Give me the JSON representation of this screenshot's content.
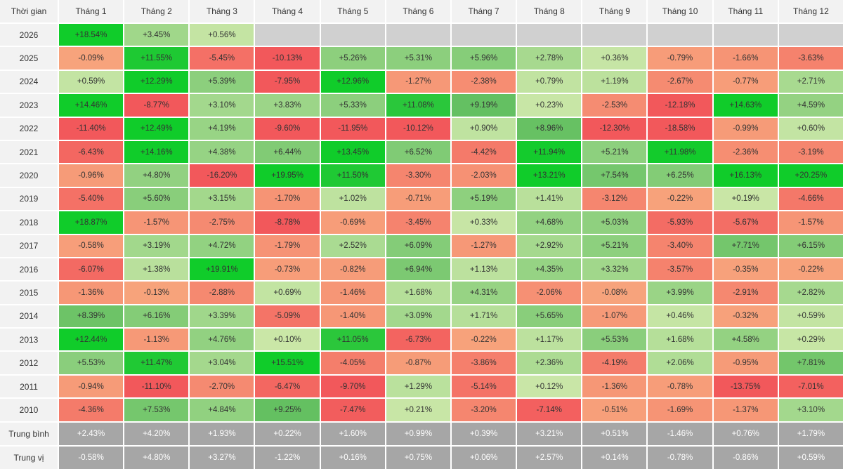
{
  "chart_data": {
    "type": "heatmap",
    "corner_label": "Thời gian",
    "columns": [
      "Tháng 1",
      "Tháng 2",
      "Tháng 3",
      "Tháng 4",
      "Tháng 5",
      "Tháng 6",
      "Tháng 7",
      "Tháng 8",
      "Tháng 9",
      "Tháng 10",
      "Tháng 11",
      "Tháng 12"
    ],
    "rows": [
      {
        "label": "2026",
        "values": [
          "+18.54%",
          "+3.45%",
          "+0.56%",
          "",
          "",
          "",
          "",
          "",
          "",
          "",
          "",
          ""
        ]
      },
      {
        "label": "2025",
        "values": [
          "-0.09%",
          "+11.55%",
          "-5.45%",
          "-10.13%",
          "+5.26%",
          "+5.31%",
          "+5.96%",
          "+2.78%",
          "+0.36%",
          "-0.79%",
          "-1.66%",
          "-3.63%"
        ]
      },
      {
        "label": "2024",
        "values": [
          "+0.59%",
          "+12.29%",
          "+5.39%",
          "-7.95%",
          "+12.96%",
          "-1.27%",
          "-2.38%",
          "+0.79%",
          "+1.19%",
          "-2.67%",
          "-0.77%",
          "+2.71%"
        ]
      },
      {
        "label": "2023",
        "values": [
          "+14.46%",
          "-8.77%",
          "+3.10%",
          "+3.83%",
          "+5.33%",
          "+11.08%",
          "+9.19%",
          "+0.23%",
          "-2.53%",
          "-12.18%",
          "+14.63%",
          "+4.59%"
        ]
      },
      {
        "label": "2022",
        "values": [
          "-11.40%",
          "+12.49%",
          "+4.19%",
          "-9.60%",
          "-11.95%",
          "-10.12%",
          "+0.90%",
          "+8.96%",
          "-12.30%",
          "-18.58%",
          "-0.99%",
          "+0.60%"
        ]
      },
      {
        "label": "2021",
        "values": [
          "-6.43%",
          "+14.16%",
          "+4.38%",
          "+6.44%",
          "+13.45%",
          "+6.52%",
          "-4.42%",
          "+11.94%",
          "+5.21%",
          "+11.98%",
          "-2.36%",
          "-3.19%"
        ]
      },
      {
        "label": "2020",
        "values": [
          "-0.96%",
          "+4.80%",
          "-16.20%",
          "+19.95%",
          "+11.50%",
          "-3.30%",
          "-2.03%",
          "+13.21%",
          "+7.54%",
          "+6.25%",
          "+16.13%",
          "+20.25%"
        ]
      },
      {
        "label": "2019",
        "values": [
          "-5.40%",
          "+5.60%",
          "+3.15%",
          "-1.70%",
          "+1.02%",
          "-0.71%",
          "+5.19%",
          "+1.41%",
          "-3.12%",
          "-0.22%",
          "+0.19%",
          "-4.66%"
        ]
      },
      {
        "label": "2018",
        "values": [
          "+18.87%",
          "-1.57%",
          "-2.75%",
          "-8.78%",
          "-0.69%",
          "-3.45%",
          "+0.33%",
          "+4.68%",
          "+5.03%",
          "-5.93%",
          "-5.67%",
          "-1.57%"
        ]
      },
      {
        "label": "2017",
        "values": [
          "-0.58%",
          "+3.19%",
          "+4.72%",
          "-1.79%",
          "+2.52%",
          "+6.09%",
          "-1.27%",
          "+2.92%",
          "+5.21%",
          "-3.40%",
          "+7.71%",
          "+6.15%"
        ]
      },
      {
        "label": "2016",
        "values": [
          "-6.07%",
          "+1.38%",
          "+19.91%",
          "-0.73%",
          "-0.82%",
          "+6.94%",
          "+1.13%",
          "+4.35%",
          "+3.32%",
          "-3.57%",
          "-0.35%",
          "-0.22%"
        ]
      },
      {
        "label": "2015",
        "values": [
          "-1.36%",
          "-0.13%",
          "-2.88%",
          "+0.69%",
          "-1.46%",
          "+1.68%",
          "+4.31%",
          "-2.06%",
          "-0.08%",
          "+3.99%",
          "-2.91%",
          "+2.82%"
        ]
      },
      {
        "label": "2014",
        "values": [
          "+8.39%",
          "+6.16%",
          "+3.39%",
          "-5.09%",
          "-1.40%",
          "+3.09%",
          "+1.71%",
          "+5.65%",
          "-1.07%",
          "+0.46%",
          "-0.32%",
          "+0.59%"
        ]
      },
      {
        "label": "2013",
        "values": [
          "+12.44%",
          "-1.13%",
          "+4.76%",
          "+0.10%",
          "+11.05%",
          "-6.73%",
          "-0.22%",
          "+1.17%",
          "+5.53%",
          "+1.68%",
          "+4.58%",
          "+0.29%"
        ]
      },
      {
        "label": "2012",
        "values": [
          "+5.53%",
          "+11.47%",
          "+3.04%",
          "+15.51%",
          "-4.05%",
          "-0.87%",
          "-3.86%",
          "+2.36%",
          "-4.19%",
          "+2.06%",
          "-0.95%",
          "+7.81%"
        ]
      },
      {
        "label": "2011",
        "values": [
          "-0.94%",
          "-11.10%",
          "-2.70%",
          "-6.47%",
          "-9.70%",
          "+1.29%",
          "-5.14%",
          "+0.12%",
          "-1.36%",
          "-0.78%",
          "-13.75%",
          "-7.01%"
        ]
      },
      {
        "label": "2010",
        "values": [
          "-4.36%",
          "+7.53%",
          "+4.84%",
          "+9.25%",
          "-7.47%",
          "+0.21%",
          "-3.20%",
          "-7.14%",
          "-0.51%",
          "-1.69%",
          "-1.37%",
          "+3.10%"
        ]
      }
    ],
    "summary_rows": [
      {
        "label": "Trung bình",
        "values": [
          "+2.43%",
          "+4.20%",
          "+1.93%",
          "+0.22%",
          "+1.60%",
          "+0.99%",
          "+0.39%",
          "+3.21%",
          "+0.51%",
          "-1.46%",
          "+0.76%",
          "+1.79%"
        ]
      },
      {
        "label": "Trung vị",
        "values": [
          "-0.58%",
          "+4.80%",
          "+3.27%",
          "-1.22%",
          "+0.16%",
          "+0.75%",
          "+0.06%",
          "+2.57%",
          "+0.14%",
          "-0.78%",
          "-0.86%",
          "+0.59%"
        ]
      }
    ],
    "colors": {
      "strong_positive": "#10cc2a",
      "positive": "#5cbd5c",
      "mild_positive": "#cbe7a8",
      "mild_negative": "#f7a47c",
      "negative": "#f2585b",
      "empty": "#d0d0d0",
      "summary": "#a6a6a6",
      "header": "#f2f2f2"
    }
  }
}
